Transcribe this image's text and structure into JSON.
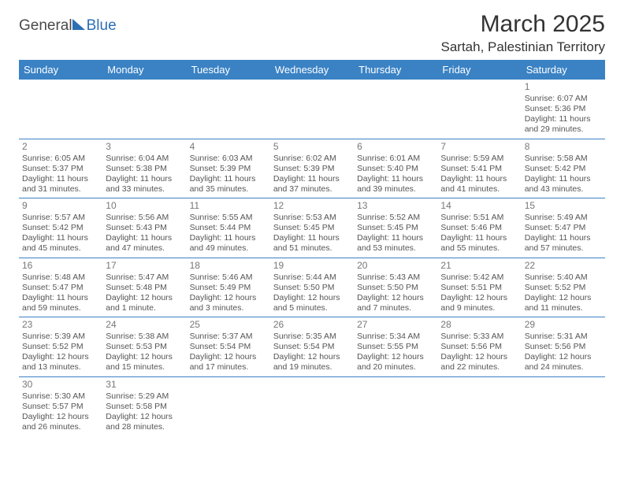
{
  "logo": {
    "text1": "General",
    "text2": "Blue"
  },
  "title": "March 2025",
  "location": "Sartah, Palestinian Territory",
  "colors": {
    "header_bg": "#3a82c4",
    "header_text": "#ffffff",
    "border": "#3a82c4",
    "logo_gray": "#4a4a4a",
    "logo_blue": "#2c6fb5",
    "body_text": "#555555",
    "daynum": "#777777",
    "background": "#ffffff"
  },
  "day_headers": [
    "Sunday",
    "Monday",
    "Tuesday",
    "Wednesday",
    "Thursday",
    "Friday",
    "Saturday"
  ],
  "weeks": [
    [
      null,
      null,
      null,
      null,
      null,
      null,
      {
        "n": "1",
        "sr": "Sunrise: 6:07 AM",
        "ss": "Sunset: 5:36 PM",
        "dl": "Daylight: 11 hours and 29 minutes."
      }
    ],
    [
      {
        "n": "2",
        "sr": "Sunrise: 6:05 AM",
        "ss": "Sunset: 5:37 PM",
        "dl": "Daylight: 11 hours and 31 minutes."
      },
      {
        "n": "3",
        "sr": "Sunrise: 6:04 AM",
        "ss": "Sunset: 5:38 PM",
        "dl": "Daylight: 11 hours and 33 minutes."
      },
      {
        "n": "4",
        "sr": "Sunrise: 6:03 AM",
        "ss": "Sunset: 5:39 PM",
        "dl": "Daylight: 11 hours and 35 minutes."
      },
      {
        "n": "5",
        "sr": "Sunrise: 6:02 AM",
        "ss": "Sunset: 5:39 PM",
        "dl": "Daylight: 11 hours and 37 minutes."
      },
      {
        "n": "6",
        "sr": "Sunrise: 6:01 AM",
        "ss": "Sunset: 5:40 PM",
        "dl": "Daylight: 11 hours and 39 minutes."
      },
      {
        "n": "7",
        "sr": "Sunrise: 5:59 AM",
        "ss": "Sunset: 5:41 PM",
        "dl": "Daylight: 11 hours and 41 minutes."
      },
      {
        "n": "8",
        "sr": "Sunrise: 5:58 AM",
        "ss": "Sunset: 5:42 PM",
        "dl": "Daylight: 11 hours and 43 minutes."
      }
    ],
    [
      {
        "n": "9",
        "sr": "Sunrise: 5:57 AM",
        "ss": "Sunset: 5:42 PM",
        "dl": "Daylight: 11 hours and 45 minutes."
      },
      {
        "n": "10",
        "sr": "Sunrise: 5:56 AM",
        "ss": "Sunset: 5:43 PM",
        "dl": "Daylight: 11 hours and 47 minutes."
      },
      {
        "n": "11",
        "sr": "Sunrise: 5:55 AM",
        "ss": "Sunset: 5:44 PM",
        "dl": "Daylight: 11 hours and 49 minutes."
      },
      {
        "n": "12",
        "sr": "Sunrise: 5:53 AM",
        "ss": "Sunset: 5:45 PM",
        "dl": "Daylight: 11 hours and 51 minutes."
      },
      {
        "n": "13",
        "sr": "Sunrise: 5:52 AM",
        "ss": "Sunset: 5:45 PM",
        "dl": "Daylight: 11 hours and 53 minutes."
      },
      {
        "n": "14",
        "sr": "Sunrise: 5:51 AM",
        "ss": "Sunset: 5:46 PM",
        "dl": "Daylight: 11 hours and 55 minutes."
      },
      {
        "n": "15",
        "sr": "Sunrise: 5:49 AM",
        "ss": "Sunset: 5:47 PM",
        "dl": "Daylight: 11 hours and 57 minutes."
      }
    ],
    [
      {
        "n": "16",
        "sr": "Sunrise: 5:48 AM",
        "ss": "Sunset: 5:47 PM",
        "dl": "Daylight: 11 hours and 59 minutes."
      },
      {
        "n": "17",
        "sr": "Sunrise: 5:47 AM",
        "ss": "Sunset: 5:48 PM",
        "dl": "Daylight: 12 hours and 1 minute."
      },
      {
        "n": "18",
        "sr": "Sunrise: 5:46 AM",
        "ss": "Sunset: 5:49 PM",
        "dl": "Daylight: 12 hours and 3 minutes."
      },
      {
        "n": "19",
        "sr": "Sunrise: 5:44 AM",
        "ss": "Sunset: 5:50 PM",
        "dl": "Daylight: 12 hours and 5 minutes."
      },
      {
        "n": "20",
        "sr": "Sunrise: 5:43 AM",
        "ss": "Sunset: 5:50 PM",
        "dl": "Daylight: 12 hours and 7 minutes."
      },
      {
        "n": "21",
        "sr": "Sunrise: 5:42 AM",
        "ss": "Sunset: 5:51 PM",
        "dl": "Daylight: 12 hours and 9 minutes."
      },
      {
        "n": "22",
        "sr": "Sunrise: 5:40 AM",
        "ss": "Sunset: 5:52 PM",
        "dl": "Daylight: 12 hours and 11 minutes."
      }
    ],
    [
      {
        "n": "23",
        "sr": "Sunrise: 5:39 AM",
        "ss": "Sunset: 5:52 PM",
        "dl": "Daylight: 12 hours and 13 minutes."
      },
      {
        "n": "24",
        "sr": "Sunrise: 5:38 AM",
        "ss": "Sunset: 5:53 PM",
        "dl": "Daylight: 12 hours and 15 minutes."
      },
      {
        "n": "25",
        "sr": "Sunrise: 5:37 AM",
        "ss": "Sunset: 5:54 PM",
        "dl": "Daylight: 12 hours and 17 minutes."
      },
      {
        "n": "26",
        "sr": "Sunrise: 5:35 AM",
        "ss": "Sunset: 5:54 PM",
        "dl": "Daylight: 12 hours and 19 minutes."
      },
      {
        "n": "27",
        "sr": "Sunrise: 5:34 AM",
        "ss": "Sunset: 5:55 PM",
        "dl": "Daylight: 12 hours and 20 minutes."
      },
      {
        "n": "28",
        "sr": "Sunrise: 5:33 AM",
        "ss": "Sunset: 5:56 PM",
        "dl": "Daylight: 12 hours and 22 minutes."
      },
      {
        "n": "29",
        "sr": "Sunrise: 5:31 AM",
        "ss": "Sunset: 5:56 PM",
        "dl": "Daylight: 12 hours and 24 minutes."
      }
    ],
    [
      {
        "n": "30",
        "sr": "Sunrise: 5:30 AM",
        "ss": "Sunset: 5:57 PM",
        "dl": "Daylight: 12 hours and 26 minutes."
      },
      {
        "n": "31",
        "sr": "Sunrise: 5:29 AM",
        "ss": "Sunset: 5:58 PM",
        "dl": "Daylight: 12 hours and 28 minutes."
      },
      null,
      null,
      null,
      null,
      null
    ]
  ]
}
